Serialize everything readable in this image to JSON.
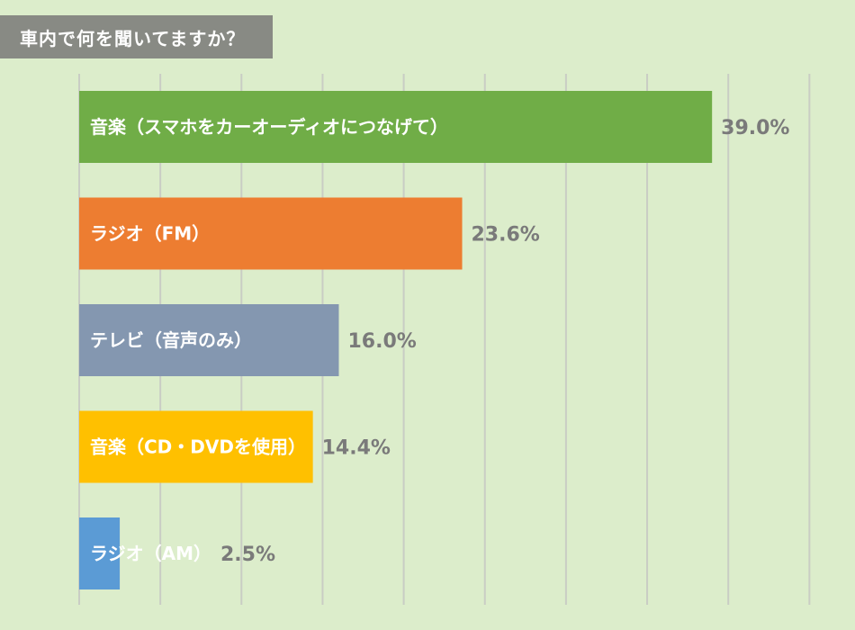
{
  "title": "車内で何を聞いてますか？",
  "chart_data": {
    "type": "bar",
    "orientation": "horizontal",
    "title": "車内で何を聞いてますか？",
    "categories": [
      "音楽（スマホをカーオーディオにつなげて）",
      "ラジオ（FM）",
      "テレビ（音声のみ）",
      "音楽（CD・DVDを使用）",
      "ラジオ（AM）"
    ],
    "values": [
      39.0,
      23.6,
      16.0,
      14.4,
      2.5
    ],
    "value_labels": [
      "39.0%",
      "23.6%",
      "16.0%",
      "14.4%",
      "2.5%"
    ],
    "colors": [
      "#70ad47",
      "#ed7d31",
      "#8497b0",
      "#ffc000",
      "#5b9bd5"
    ],
    "xlim": [
      0,
      45
    ],
    "grid": true,
    "legend": "none"
  }
}
